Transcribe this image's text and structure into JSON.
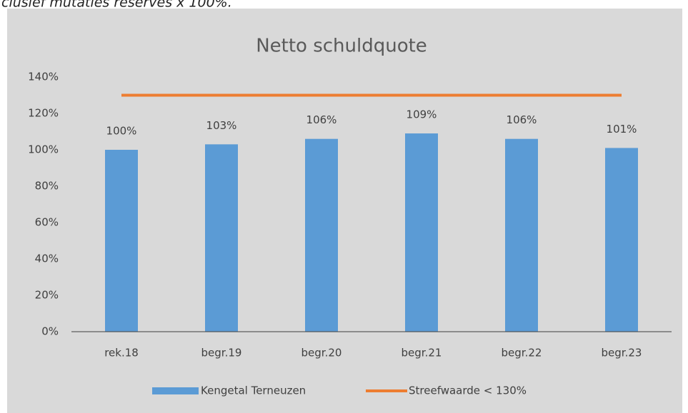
{
  "caption": "clusief mutaties reserves x 100%.",
  "chart_data": {
    "type": "bar",
    "title": "Netto schuldquote",
    "categories": [
      "rek.18",
      "begr.19",
      "begr.20",
      "begr.21",
      "begr.22",
      "begr.23"
    ],
    "series": [
      {
        "name": "Kengetal Terneuzen",
        "type": "bar",
        "color": "#5b9bd5",
        "values": [
          100,
          103,
          106,
          109,
          106,
          101
        ],
        "value_labels": [
          "100%",
          "103%",
          "106%",
          "109%",
          "106%",
          "101%"
        ]
      },
      {
        "name": "Streefwaarde < 130%",
        "type": "line",
        "color": "#ed7d31",
        "values": [
          130,
          130,
          130,
          130,
          130,
          130
        ]
      }
    ],
    "ylim": [
      0,
      140
    ],
    "yticks": [
      {
        "value": 0,
        "label": "0%"
      },
      {
        "value": 20,
        "label": "20%"
      },
      {
        "value": 40,
        "label": "40%"
      },
      {
        "value": 60,
        "label": "60%"
      },
      {
        "value": 80,
        "label": "80%"
      },
      {
        "value": 100,
        "label": "100%"
      },
      {
        "value": 120,
        "label": "120%"
      },
      {
        "value": 140,
        "label": "140%"
      }
    ],
    "grid": false,
    "legend": "bottom"
  }
}
